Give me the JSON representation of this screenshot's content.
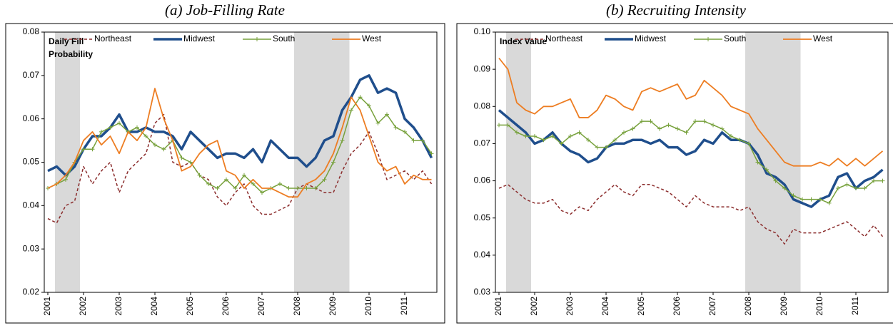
{
  "chart_data": [
    {
      "type": "line",
      "title": "(a) Job-Filling Rate",
      "annotation": [
        "Daily Fill",
        "Probability"
      ],
      "x": [
        2001,
        2001.25,
        2001.5,
        2001.75,
        2002,
        2002.25,
        2002.5,
        2002.75,
        2003,
        2003.25,
        2003.5,
        2003.75,
        2004,
        2004.25,
        2004.5,
        2004.75,
        2005,
        2005.25,
        2005.5,
        2005.75,
        2006,
        2006.25,
        2006.5,
        2006.75,
        2007,
        2007.25,
        2007.5,
        2007.75,
        2008,
        2008.25,
        2008.5,
        2008.75,
        2009,
        2009.25,
        2009.5,
        2009.75,
        2010,
        2010.25,
        2010.5,
        2010.75,
        2011,
        2011.25,
        2011.5,
        2011.75
      ],
      "xlim": [
        2000.9,
        2011.9
      ],
      "xticks": [
        2001,
        2002,
        2003,
        2004,
        2005,
        2006,
        2007,
        2008,
        2009,
        2010,
        2011
      ],
      "ylim": [
        0.02,
        0.08
      ],
      "yticks": [
        0.02,
        0.03,
        0.04,
        0.05,
        0.06,
        0.07,
        0.08
      ],
      "grid": false,
      "shaded_periods": [
        [
          2001.2,
          2001.9
        ],
        [
          2007.9,
          2009.45
        ]
      ],
      "shade_color": "#d9d9d9",
      "series": [
        {
          "name": "Northeast",
          "color": "#8b2c2c",
          "line_style": "dashed",
          "width": 1.5,
          "values": [
            0.037,
            0.036,
            0.04,
            0.041,
            0.049,
            0.045,
            0.048,
            0.05,
            0.043,
            0.048,
            0.05,
            0.052,
            0.059,
            0.061,
            0.05,
            0.049,
            0.05,
            0.047,
            0.046,
            0.042,
            0.04,
            0.043,
            0.045,
            0.04,
            0.038,
            0.038,
            0.039,
            0.04,
            0.044,
            0.045,
            0.044,
            0.043,
            0.043,
            0.048,
            0.052,
            0.054,
            0.057,
            0.052,
            0.046,
            0.047,
            0.048,
            0.046,
            0.048,
            0.045
          ]
        },
        {
          "name": "Midwest",
          "color": "#1f4e8c",
          "line_style": "solid",
          "width": 3.5,
          "values": [
            0.048,
            0.049,
            0.047,
            0.049,
            0.053,
            0.056,
            0.056,
            0.058,
            0.061,
            0.057,
            0.057,
            0.058,
            0.057,
            0.057,
            0.056,
            0.053,
            0.057,
            0.055,
            0.053,
            0.051,
            0.052,
            0.052,
            0.051,
            0.053,
            0.05,
            0.055,
            0.053,
            0.051,
            0.051,
            0.049,
            0.051,
            0.055,
            0.056,
            0.062,
            0.065,
            0.069,
            0.07,
            0.066,
            0.067,
            0.066,
            0.06,
            0.058,
            0.055,
            0.051
          ]
        },
        {
          "name": "South",
          "color": "#77a13c",
          "line_style": "solid",
          "width": 1.5,
          "marker": "+",
          "values": [
            0.044,
            0.045,
            0.046,
            0.05,
            0.053,
            0.053,
            0.057,
            0.058,
            0.059,
            0.057,
            0.058,
            0.056,
            0.054,
            0.053,
            0.055,
            0.051,
            0.05,
            0.047,
            0.045,
            0.044,
            0.046,
            0.044,
            0.047,
            0.045,
            0.043,
            0.044,
            0.045,
            0.044,
            0.044,
            0.044,
            0.044,
            0.046,
            0.05,
            0.055,
            0.062,
            0.065,
            0.063,
            0.059,
            0.061,
            0.058,
            0.057,
            0.055,
            0.055,
            0.052
          ]
        },
        {
          "name": "West",
          "color": "#ed7d22",
          "line_style": "solid",
          "width": 1.8,
          "values": [
            0.044,
            0.045,
            0.047,
            0.05,
            0.055,
            0.057,
            0.054,
            0.056,
            0.052,
            0.057,
            0.055,
            0.058,
            0.067,
            0.06,
            0.055,
            0.048,
            0.049,
            0.052,
            0.054,
            0.055,
            0.048,
            0.047,
            0.044,
            0.046,
            0.044,
            0.044,
            0.043,
            0.042,
            0.042,
            0.045,
            0.046,
            0.048,
            0.052,
            0.058,
            0.065,
            0.062,
            0.056,
            0.05,
            0.048,
            0.049,
            0.045,
            0.047,
            0.046,
            0.046
          ]
        }
      ]
    },
    {
      "type": "line",
      "title": "(b) Recruiting Intensity",
      "annotation": [
        "Index Value"
      ],
      "x": [
        2001,
        2001.25,
        2001.5,
        2001.75,
        2002,
        2002.25,
        2002.5,
        2002.75,
        2003,
        2003.25,
        2003.5,
        2003.75,
        2004,
        2004.25,
        2004.5,
        2004.75,
        2005,
        2005.25,
        2005.5,
        2005.75,
        2006,
        2006.25,
        2006.5,
        2006.75,
        2007,
        2007.25,
        2007.5,
        2007.75,
        2008,
        2008.25,
        2008.5,
        2008.75,
        2009,
        2009.25,
        2009.5,
        2009.75,
        2010,
        2010.25,
        2010.5,
        2010.75,
        2011,
        2011.25,
        2011.5,
        2011.75
      ],
      "xlim": [
        2000.9,
        2011.9
      ],
      "xticks": [
        2001,
        2002,
        2003,
        2004,
        2005,
        2006,
        2007,
        2008,
        2009,
        2010,
        2011
      ],
      "ylim": [
        0.03,
        0.1
      ],
      "yticks": [
        0.03,
        0.04,
        0.05,
        0.06,
        0.07,
        0.08,
        0.09,
        {
          "value": 0.1,
          "label": "0.10"
        }
      ],
      "grid": false,
      "shaded_periods": [
        [
          2001.2,
          2001.9
        ],
        [
          2007.9,
          2009.45
        ]
      ],
      "shade_color": "#d9d9d9",
      "series": [
        {
          "name": "Northeast",
          "color": "#8b2c2c",
          "line_style": "dashed",
          "width": 1.5,
          "values": [
            0.058,
            0.059,
            0.057,
            0.055,
            0.054,
            0.054,
            0.055,
            0.052,
            0.051,
            0.053,
            0.052,
            0.055,
            0.057,
            0.059,
            0.057,
            0.056,
            0.059,
            0.059,
            0.058,
            0.057,
            0.055,
            0.053,
            0.056,
            0.054,
            0.053,
            0.053,
            0.053,
            0.052,
            0.053,
            0.049,
            0.047,
            0.046,
            0.043,
            0.047,
            0.046,
            0.046,
            0.046,
            0.047,
            0.048,
            0.049,
            0.047,
            0.045,
            0.048,
            0.045
          ]
        },
        {
          "name": "Midwest",
          "color": "#1f4e8c",
          "line_style": "solid",
          "width": 3.5,
          "values": [
            0.079,
            0.077,
            0.075,
            0.073,
            0.07,
            0.071,
            0.073,
            0.07,
            0.068,
            0.067,
            0.065,
            0.066,
            0.069,
            0.07,
            0.07,
            0.071,
            0.071,
            0.07,
            0.071,
            0.069,
            0.069,
            0.067,
            0.068,
            0.071,
            0.07,
            0.073,
            0.071,
            0.071,
            0.07,
            0.067,
            0.062,
            0.061,
            0.059,
            0.055,
            0.054,
            0.053,
            0.055,
            0.056,
            0.061,
            0.062,
            0.058,
            0.06,
            0.061,
            0.063
          ]
        },
        {
          "name": "South",
          "color": "#77a13c",
          "line_style": "solid",
          "width": 1.5,
          "marker": "+",
          "values": [
            0.075,
            0.075,
            0.073,
            0.072,
            0.072,
            0.071,
            0.072,
            0.07,
            0.072,
            0.073,
            0.071,
            0.069,
            0.069,
            0.071,
            0.073,
            0.074,
            0.076,
            0.076,
            0.074,
            0.075,
            0.074,
            0.073,
            0.076,
            0.076,
            0.075,
            0.074,
            0.072,
            0.071,
            0.07,
            0.065,
            0.063,
            0.06,
            0.058,
            0.056,
            0.055,
            0.055,
            0.055,
            0.054,
            0.058,
            0.059,
            0.058,
            0.058,
            0.06,
            0.06
          ]
        },
        {
          "name": "West",
          "color": "#ed7d22",
          "line_style": "solid",
          "width": 1.8,
          "values": [
            0.093,
            0.09,
            0.081,
            0.079,
            0.078,
            0.08,
            0.08,
            0.081,
            0.082,
            0.077,
            0.077,
            0.079,
            0.083,
            0.082,
            0.08,
            0.079,
            0.084,
            0.085,
            0.084,
            0.085,
            0.086,
            0.082,
            0.083,
            0.087,
            0.085,
            0.083,
            0.08,
            0.079,
            0.078,
            0.074,
            0.071,
            0.068,
            0.065,
            0.064,
            0.064,
            0.064,
            0.065,
            0.064,
            0.066,
            0.064,
            0.066,
            0.064,
            0.066,
            0.068
          ]
        }
      ]
    }
  ]
}
